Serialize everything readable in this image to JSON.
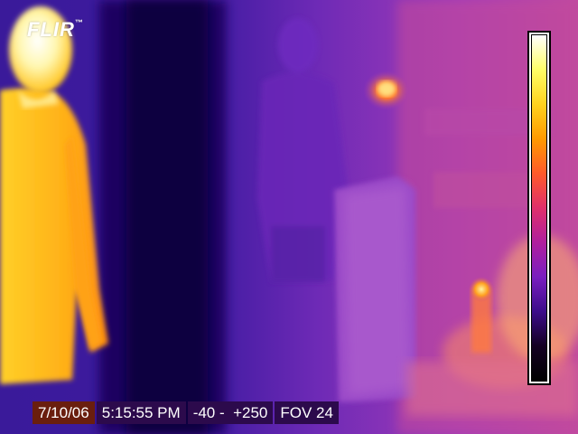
{
  "logo": {
    "text": "FLIR",
    "trademark": "™"
  },
  "palette": [
    "#ffffff",
    "#ffff66",
    "#ffd21e",
    "#ff9a00",
    "#ff5a2a",
    "#e0306a",
    "#b01e9e",
    "#7a1ec0",
    "#3c0c8a",
    "#140022",
    "#000000"
  ],
  "status": {
    "date": "7/10/06",
    "time": "5:15:55 PM",
    "range": "-40 -  +250",
    "fov": "FOV 24"
  }
}
